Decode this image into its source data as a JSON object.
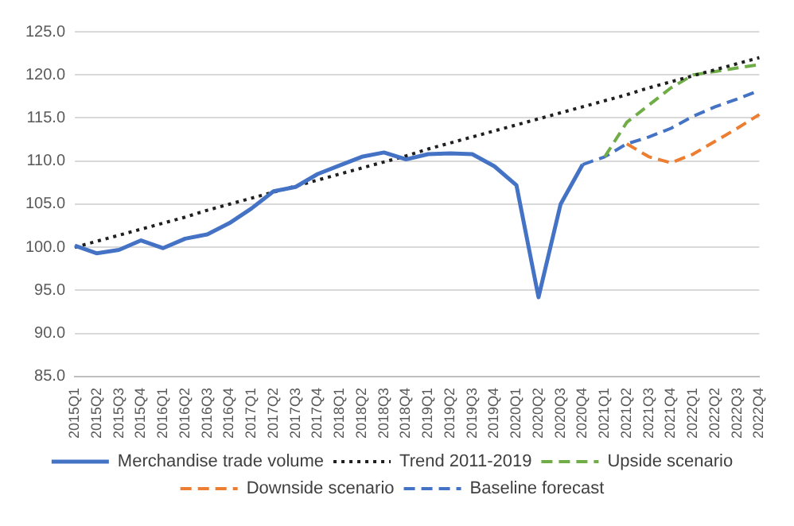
{
  "chart_data": {
    "type": "line",
    "categories": [
      "2015Q1",
      "2015Q2",
      "2015Q3",
      "2015Q4",
      "2016Q1",
      "2016Q2",
      "2016Q3",
      "2016Q4",
      "2017Q1",
      "2017Q2",
      "2017Q3",
      "2017Q4",
      "2018Q1",
      "2018Q2",
      "2018Q3",
      "2018Q4",
      "2019Q1",
      "2019Q2",
      "2019Q3",
      "2019Q4",
      "2020Q1",
      "2020Q2",
      "2020Q3",
      "2020Q4",
      "2021Q1",
      "2021Q2",
      "2021Q3",
      "2021Q4",
      "2022Q1",
      "2022Q2",
      "2022Q3",
      "2022Q4"
    ],
    "series": [
      {
        "name": "Merchandise trade volume",
        "color": "#4472c4",
        "line_style": "solid",
        "values": [
          100.2,
          99.3,
          99.7,
          100.8,
          99.9,
          101.0,
          101.5,
          102.8,
          104.5,
          106.5,
          107.0,
          108.5,
          109.5,
          110.5,
          111.0,
          110.2,
          110.8,
          110.9,
          110.8,
          109.4,
          107.2,
          94.2,
          105.0,
          109.6,
          null,
          null,
          null,
          null,
          null,
          null,
          null,
          null
        ]
      },
      {
        "name": "Trend 2011-2019",
        "color": "#1f1f1f",
        "line_style": "dotted",
        "values": [
          100.0,
          100.7,
          101.4,
          102.1,
          102.8,
          103.5,
          104.3,
          105.0,
          105.7,
          106.4,
          107.1,
          107.8,
          108.5,
          109.2,
          109.9,
          110.6,
          111.4,
          112.1,
          112.8,
          113.5,
          114.2,
          114.9,
          115.6,
          116.3,
          117.0,
          117.7,
          118.5,
          119.2,
          119.9,
          120.6,
          121.3,
          122.0
        ]
      },
      {
        "name": "Upside scenario",
        "color": "#70ad47",
        "line_style": "dashed",
        "values": [
          null,
          null,
          null,
          null,
          null,
          null,
          null,
          null,
          null,
          null,
          null,
          null,
          null,
          null,
          null,
          null,
          null,
          null,
          null,
          null,
          null,
          null,
          null,
          null,
          110.5,
          114.5,
          116.5,
          118.5,
          120.0,
          120.4,
          120.8,
          121.2
        ]
      },
      {
        "name": "Downside scenario",
        "color": "#ed7d31",
        "line_style": "dashed",
        "values": [
          null,
          null,
          null,
          null,
          null,
          null,
          null,
          null,
          null,
          null,
          null,
          null,
          null,
          null,
          null,
          null,
          null,
          null,
          null,
          null,
          null,
          null,
          null,
          null,
          null,
          112.0,
          110.5,
          109.8,
          110.8,
          112.3,
          113.8,
          115.4
        ]
      },
      {
        "name": "Baseline forecast",
        "color": "#4472c4",
        "line_style": "dashed",
        "values": [
          null,
          null,
          null,
          null,
          null,
          null,
          null,
          null,
          null,
          null,
          null,
          null,
          null,
          null,
          null,
          null,
          null,
          null,
          null,
          null,
          null,
          null,
          null,
          109.6,
          110.5,
          112.0,
          112.8,
          113.8,
          115.2,
          116.3,
          117.2,
          118.2
        ]
      }
    ],
    "ylim": [
      85,
      125
    ],
    "yticks": [
      {
        "value": 85,
        "label": "85.0"
      },
      {
        "value": 90,
        "label": "90.0"
      },
      {
        "value": 95,
        "label": "95.0"
      },
      {
        "value": 100,
        "label": "100.0"
      },
      {
        "value": 105,
        "label": "105.0"
      },
      {
        "value": 110,
        "label": "110.0"
      },
      {
        "value": 115,
        "label": "115.0"
      },
      {
        "value": 120,
        "label": "120.0"
      },
      {
        "value": 125,
        "label": "125.0"
      }
    ],
    "grid": "y",
    "legend": "bottom",
    "marker": "none"
  }
}
